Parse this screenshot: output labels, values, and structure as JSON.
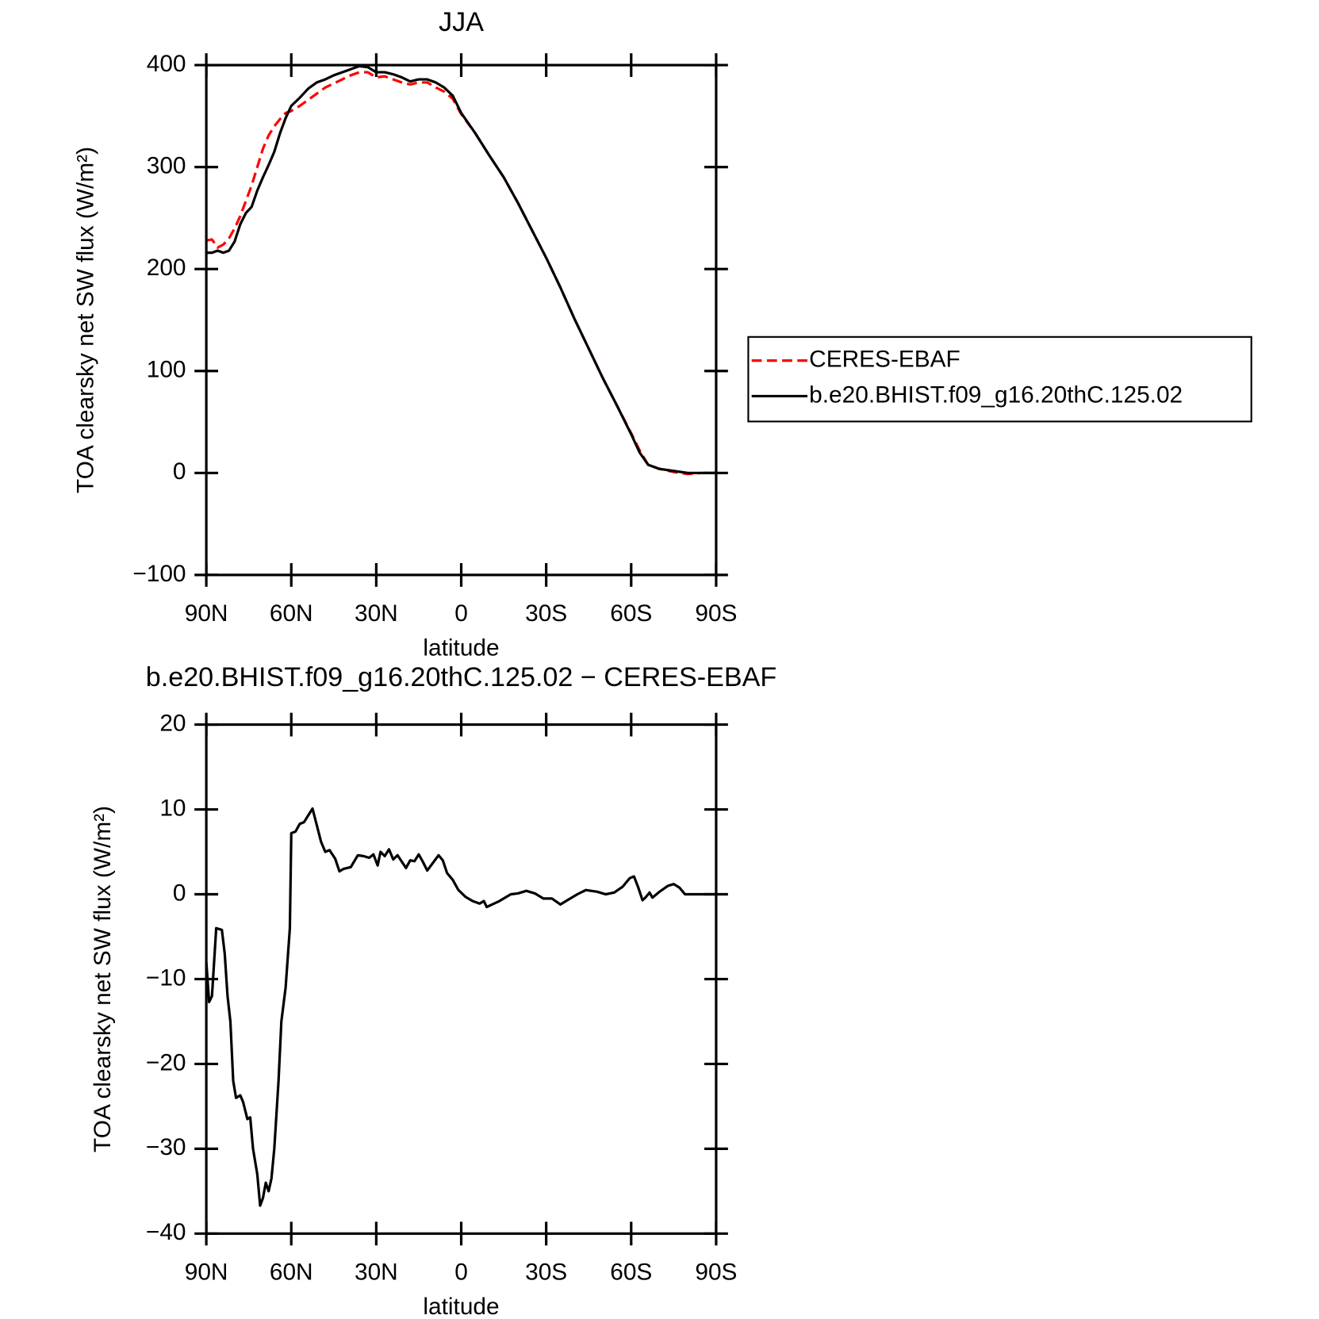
{
  "chart_data": [
    {
      "type": "line",
      "title": "JJA",
      "xlabel": "latitude",
      "ylabel": "TOA clearsky net SW flux (W/m²)",
      "x": [
        90,
        88,
        86,
        84,
        82,
        80,
        78,
        76,
        74,
        72,
        70,
        68,
        66,
        64,
        62,
        60,
        57,
        54,
        51,
        48,
        45,
        42,
        39,
        36,
        33,
        30,
        27,
        24,
        21,
        18,
        15,
        12,
        9,
        6,
        3,
        0,
        -5,
        -10,
        -15,
        -20,
        -25,
        -30,
        -35,
        -40,
        -45,
        -50,
        -55,
        -60,
        -63,
        -66,
        -70,
        -75,
        -80,
        -85,
        -90
      ],
      "series": [
        {
          "name": "CERES-EBAF",
          "color": "#ff0000",
          "line_style": "dashed",
          "values": [
            228,
            229,
            221,
            224,
            230,
            240,
            252,
            267,
            282,
            300,
            318,
            331,
            340,
            347,
            353,
            355,
            360,
            366,
            372,
            378,
            382,
            386,
            390,
            393,
            393,
            388,
            389,
            386,
            383,
            381,
            383,
            383,
            378,
            374,
            367,
            352,
            333,
            311,
            290,
            265,
            238,
            211,
            182,
            151,
            122,
            93,
            66,
            39,
            22,
            8,
            4,
            1,
            -1,
            0,
            0
          ]
        },
        {
          "name": "b.e20.BHIST.f09_g16.20thC.125.02",
          "color": "#000000",
          "line_style": "solid",
          "values": [
            216,
            216,
            218,
            216,
            218,
            227,
            244,
            255,
            261,
            277,
            290,
            302,
            315,
            333,
            348,
            360,
            368,
            377,
            383,
            386,
            390,
            393,
            396,
            399,
            398,
            393,
            393,
            391,
            388,
            384,
            386,
            386,
            383,
            378,
            370,
            353,
            333,
            311,
            290,
            265,
            238,
            211,
            182,
            151,
            122,
            93,
            66,
            38,
            20,
            8,
            4,
            2,
            0,
            0,
            0
          ]
        }
      ],
      "xlim": [
        90,
        -90
      ],
      "xticks": [
        {
          "value": 90,
          "label": "90N"
        },
        {
          "value": 60,
          "label": "60N"
        },
        {
          "value": 30,
          "label": "30N"
        },
        0,
        {
          "value": -30,
          "label": "30S"
        },
        {
          "value": -60,
          "label": "60S"
        },
        {
          "value": -90,
          "label": "90S"
        }
      ],
      "ylim": [
        -100,
        400
      ],
      "yticks": [
        {
          "value": -100,
          "label": "−100"
        },
        0,
        100,
        200,
        300,
        400
      ],
      "legend": "right"
    },
    {
      "type": "line",
      "title": "b.e20.BHIST.f09_g16.20thC.125.02 − CERES-EBAF",
      "xlabel": "latitude",
      "ylabel": "TOA clearsky net SW flux (W/m²)",
      "x": [
        90,
        89,
        88,
        86.5,
        84.5,
        83.5,
        82.5,
        81.5,
        80.5,
        79.5,
        78,
        77,
        75.5,
        74.5,
        73.5,
        72,
        71,
        70,
        69,
        68,
        67,
        66,
        64.5,
        63.5,
        62,
        60.5,
        60,
        58.5,
        57,
        55.5,
        54,
        52.5,
        50.5,
        49.5,
        48,
        46.5,
        44.5,
        43,
        41.5,
        39,
        36.5,
        34.5,
        32.5,
        31,
        29.5,
        28.5,
        27,
        25.5,
        24,
        22.5,
        20.5,
        19.5,
        18,
        16.5,
        15,
        13.5,
        12,
        10,
        8,
        6.5,
        5,
        3,
        1,
        -1.5,
        -4,
        -6.5,
        -8,
        -9,
        -13.5,
        -17.5,
        -20,
        -23,
        -26,
        -29,
        -32,
        -35,
        -38,
        -41,
        -44,
        -48,
        -51,
        -54,
        -57,
        -59.5,
        -61,
        -62.5,
        -64,
        -65,
        -66.5,
        -67.5,
        -70,
        -73,
        -75,
        -77,
        -79,
        -90
      ],
      "values": [
        -8,
        -12.7,
        -12,
        -4,
        -4.2,
        -7,
        -12,
        -15,
        -22,
        -24,
        -23.7,
        -24.5,
        -26.5,
        -26.3,
        -30,
        -33,
        -36.7,
        -35.8,
        -34,
        -35,
        -33.5,
        -30,
        -22,
        -15,
        -11,
        -4,
        7.2,
        7.4,
        8.3,
        8.5,
        9.3,
        10.1,
        7.5,
        6.2,
        5,
        5.2,
        4.2,
        2.7,
        3,
        3.2,
        4.6,
        4.5,
        4.3,
        4.7,
        3.4,
        5,
        4.5,
        5.3,
        4.1,
        4.6,
        3.6,
        3.1,
        4,
        3.9,
        4.7,
        3.8,
        2.8,
        3.7,
        4.6,
        4,
        2.5,
        1.7,
        0.5,
        -0.3,
        -0.8,
        -1.1,
        -0.8,
        -1.5,
        -0.8,
        0,
        0.1,
        0.4,
        0.1,
        -0.5,
        -0.5,
        -1.2,
        -0.6,
        0,
        0.5,
        0.3,
        0,
        0.2,
        0.9,
        1.9,
        2.1,
        0.8,
        -0.7,
        -0.4,
        0.2,
        -0.4,
        0.3,
        1,
        1.2,
        0.8,
        0,
        0
      ],
      "color": "#000000",
      "xlim": [
        90,
        -90
      ],
      "xticks": [
        {
          "value": 90,
          "label": "90N"
        },
        {
          "value": 60,
          "label": "60N"
        },
        {
          "value": 30,
          "label": "30N"
        },
        0,
        {
          "value": -30,
          "label": "30S"
        },
        {
          "value": -60,
          "label": "60S"
        },
        {
          "value": -90,
          "label": "90S"
        }
      ],
      "ylim": [
        -40,
        20
      ],
      "yticks": [
        {
          "value": -40,
          "label": "−40"
        },
        {
          "value": -30,
          "label": "−30"
        },
        {
          "value": -20,
          "label": "−20"
        },
        {
          "value": -10,
          "label": "−10"
        },
        0,
        10,
        20
      ]
    }
  ]
}
